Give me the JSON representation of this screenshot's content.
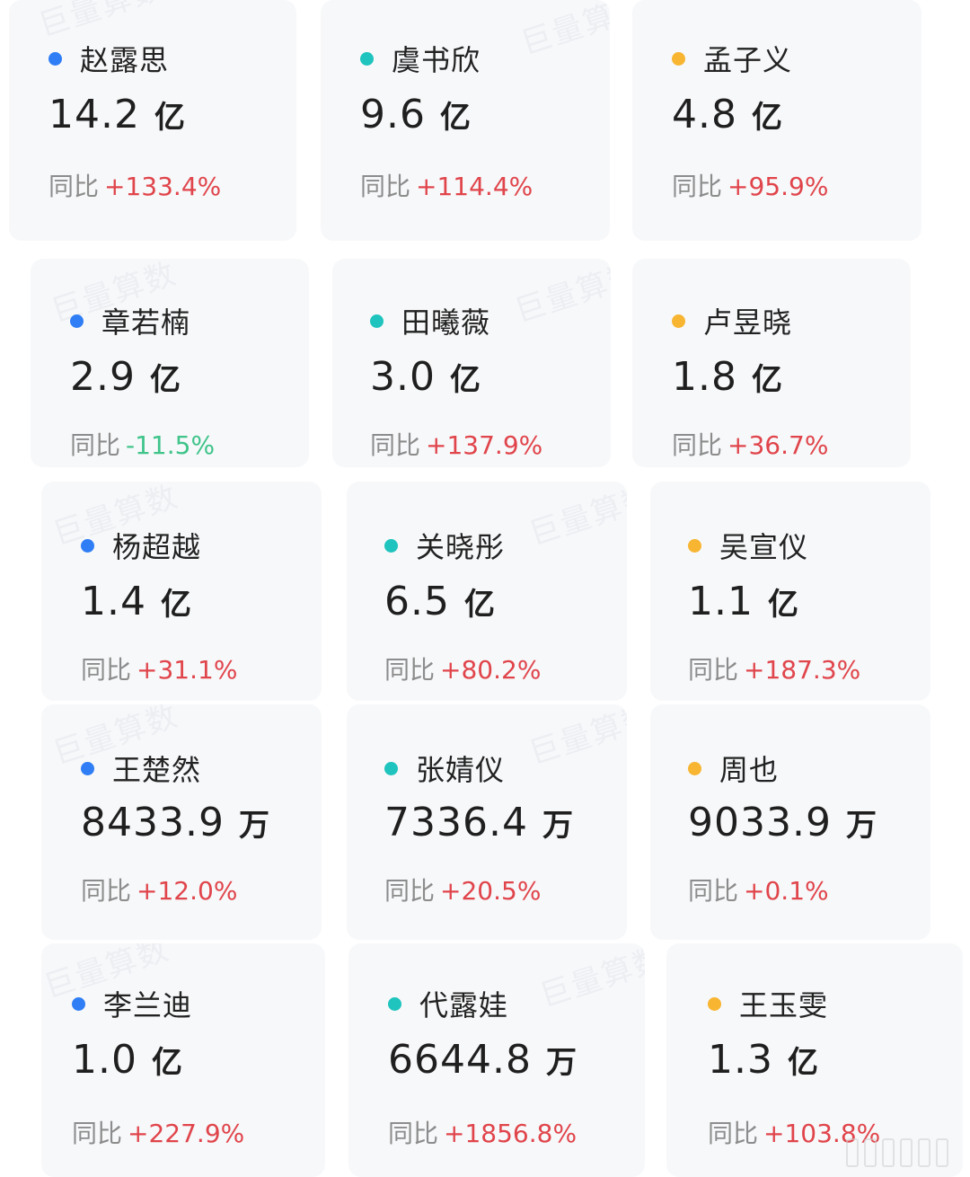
{
  "watermark": "巨量算数",
  "labels": {
    "yoy": "同比"
  },
  "colors": {
    "col1_dot": "#2f7ef5",
    "col2_dot": "#1ec4bd",
    "col3_dot": "#f7b531",
    "positive": "#e0454b",
    "negative": "#3fc48a"
  },
  "cards": [
    {
      "name": "赵露思",
      "value": "14.2",
      "unit": "亿",
      "yoy": "+133.4%"
    },
    {
      "name": "虞书欣",
      "value": "9.6",
      "unit": "亿",
      "yoy": "+114.4%"
    },
    {
      "name": "孟子义",
      "value": "4.8",
      "unit": "亿",
      "yoy": "+95.9%"
    },
    {
      "name": "章若楠",
      "value": "2.9",
      "unit": "亿",
      "yoy": "-11.5%"
    },
    {
      "name": "田曦薇",
      "value": "3.0",
      "unit": "亿",
      "yoy": "+137.9%"
    },
    {
      "name": "卢昱晓",
      "value": "1.8",
      "unit": "亿",
      "yoy": "+36.7%"
    },
    {
      "name": "杨超越",
      "value": "1.4",
      "unit": "亿",
      "yoy": "+31.1%"
    },
    {
      "name": "关晓彤",
      "value": "6.5",
      "unit": "亿",
      "yoy": "+80.2%"
    },
    {
      "name": "吴宣仪",
      "value": "1.1",
      "unit": "亿",
      "yoy": "+187.3%"
    },
    {
      "name": "王楚然",
      "value": "8433.9",
      "unit": "万",
      "yoy": "+12.0%"
    },
    {
      "name": "张婧仪",
      "value": "7336.4",
      "unit": "万",
      "yoy": "+20.5%"
    },
    {
      "name": "周也",
      "value": "9033.9",
      "unit": "万",
      "yoy": "+0.1%"
    },
    {
      "name": "李兰迪",
      "value": "1.0",
      "unit": "亿",
      "yoy": "+227.9%"
    },
    {
      "name": "代露娃",
      "value": "6644.8",
      "unit": "万",
      "yoy": "+1856.8%"
    },
    {
      "name": "王玉雯",
      "value": "1.3",
      "unit": "亿",
      "yoy": "+103.8%"
    }
  ]
}
